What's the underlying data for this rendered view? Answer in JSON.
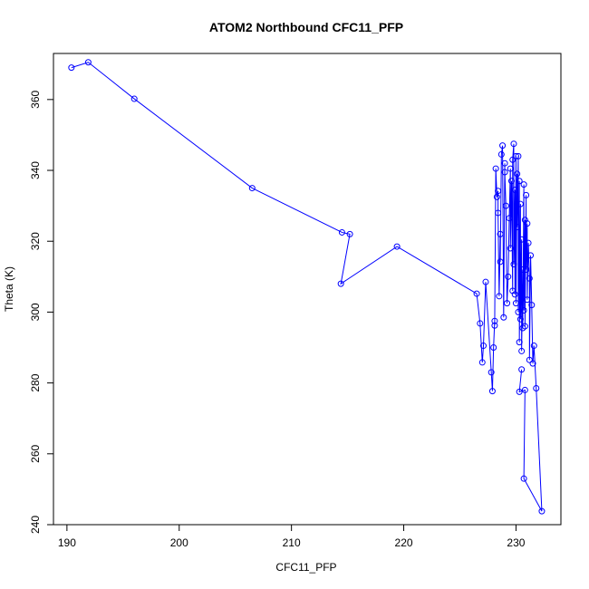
{
  "chart_data": {
    "type": "scatter",
    "title": "ATOM2 Northbound CFC11_PFP",
    "xlabel": "CFC11_PFP",
    "ylabel": "Theta (K)",
    "xlim": [
      188.8,
      234.0
    ],
    "ylim": [
      240.0,
      373.0
    ],
    "xticks": [
      190,
      200,
      210,
      220,
      230
    ],
    "yticks": [
      240,
      260,
      280,
      300,
      320,
      340,
      360
    ],
    "grid": false,
    "legend": "none",
    "line_color": "#0000ff",
    "marker": "open-circle",
    "series": [
      {
        "x": [
          190.4,
          191.9,
          196.0,
          206.5,
          214.5,
          215.2,
          214.4,
          219.4,
          226.5,
          226.8,
          227.0,
          227.1,
          227.3,
          227.8,
          227.9,
          228.0,
          228.1,
          228.1,
          228.2,
          228.3,
          228.4,
          228.4,
          228.5,
          228.6,
          228.6,
          228.7,
          228.8,
          228.9,
          229.0,
          229.0,
          229.1,
          229.2,
          229.3,
          229.4,
          229.5,
          229.5,
          229.6,
          229.7,
          229.7,
          229.8,
          229.8,
          229.9,
          229.9,
          230.0,
          230.0,
          230.1,
          230.1,
          230.2,
          230.2,
          230.3,
          230.3,
          230.4,
          230.4,
          230.5,
          230.5,
          230.6,
          230.6,
          230.7,
          230.7,
          230.8,
          230.8,
          230.9,
          230.9,
          231.0,
          231.0,
          231.1,
          231.2,
          231.2,
          231.3,
          231.4,
          231.5,
          231.6,
          231.8,
          232.3,
          230.7,
          230.8,
          230.3,
          230.5
        ],
        "y": [
          369.0,
          370.5,
          360.2,
          335.0,
          322.5,
          322.0,
          308.0,
          318.5,
          305.2,
          296.8,
          285.8,
          290.5,
          308.5,
          283.0,
          277.7,
          290.0,
          297.5,
          296.2,
          340.5,
          332.5,
          334.2,
          328.0,
          304.5,
          322.0,
          314.2,
          344.5,
          347.0,
          298.5,
          342.0,
          339.5,
          330.0,
          302.5,
          310.0,
          326.5,
          340.5,
          318.0,
          337.0,
          306.0,
          343.0,
          347.5,
          313.5,
          334.5,
          305.0,
          344.0,
          302.5,
          339.0,
          324.0,
          344.0,
          300.0,
          337.0,
          291.5,
          330.5,
          298.0,
          320.5,
          289.0,
          312.0,
          295.5,
          336.0,
          300.5,
          326.0,
          296.0,
          333.0,
          312.0,
          325.0,
          303.5,
          319.5,
          309.5,
          286.5,
          316.0,
          302.0,
          285.5,
          290.5,
          278.5,
          243.8,
          253.0,
          278.0,
          277.5,
          283.8
        ]
      }
    ]
  }
}
